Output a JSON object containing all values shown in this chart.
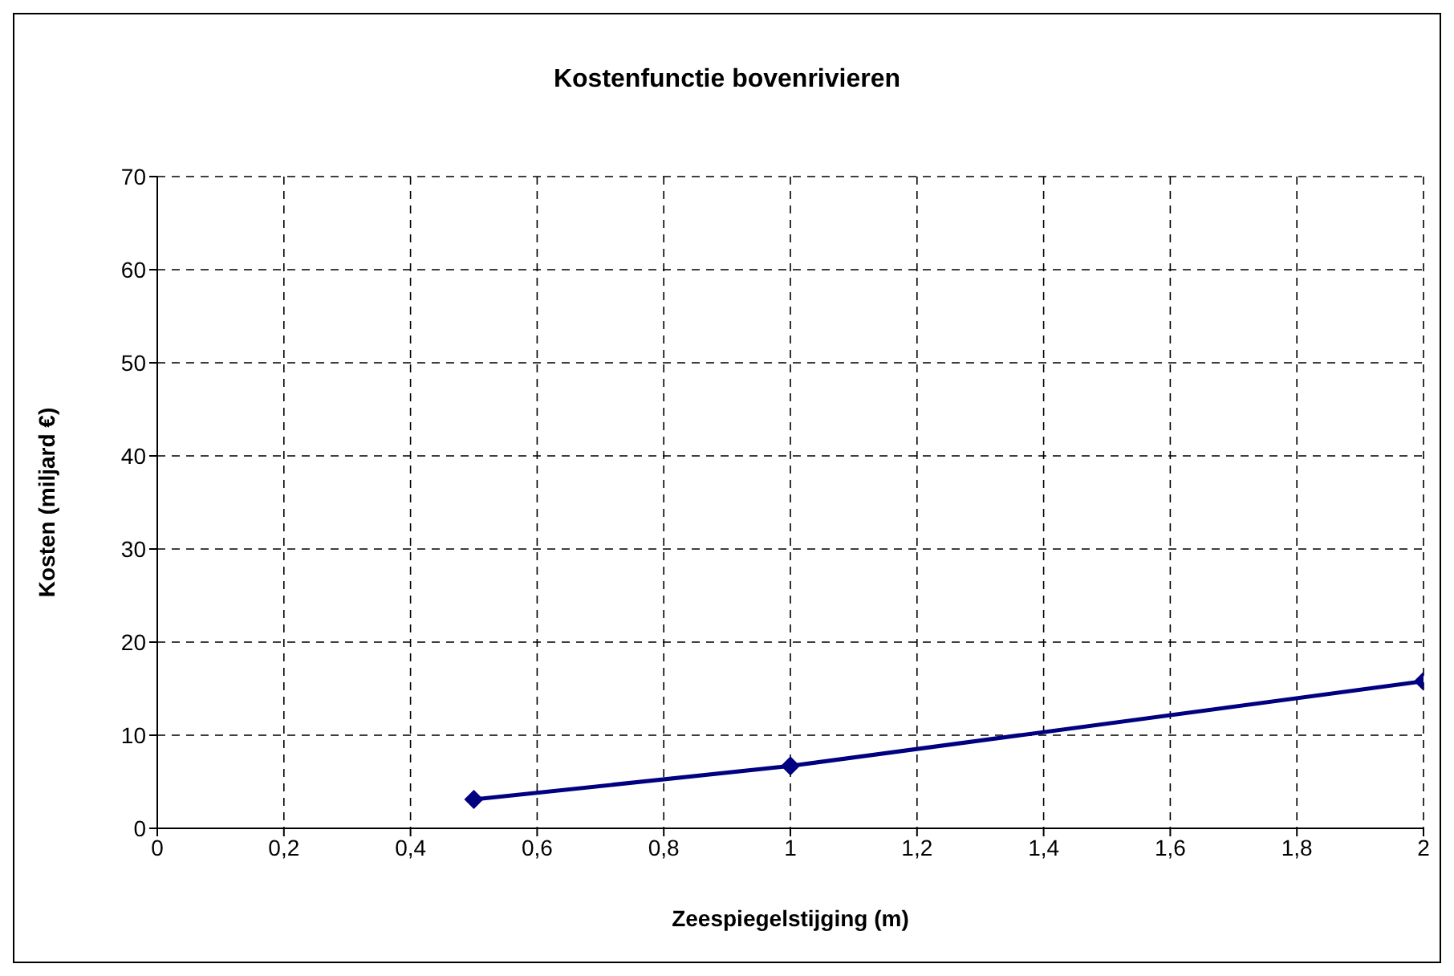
{
  "chart_data": {
    "type": "line",
    "title": "Kostenfunctie bovenrivieren",
    "xlabel": "Zeespiegelstijging (m)",
    "ylabel": "Kosten (miljard €)",
    "x": [
      0.5,
      1,
      2
    ],
    "series": [
      {
        "color": "#000080",
        "values": [
          3.1,
          6.7,
          15.8
        ]
      }
    ],
    "xlim": [
      0,
      2
    ],
    "xticks": [
      0,
      {
        "value": 0.2,
        "label": "0,2"
      },
      {
        "value": 0.4,
        "label": "0,4"
      },
      {
        "value": 0.6,
        "label": "0,6"
      },
      {
        "value": 0.8,
        "label": "0,8"
      },
      1,
      {
        "value": 1.2,
        "label": "1,2"
      },
      {
        "value": 1.4,
        "label": "1,4"
      },
      {
        "value": 1.6,
        "label": "1,6"
      },
      {
        "value": 1.8,
        "label": "1,8"
      },
      2
    ],
    "ylim": [
      0,
      70
    ],
    "yticks": [
      0,
      10,
      20,
      30,
      40,
      50,
      60,
      70
    ],
    "grid": true,
    "marker": "diamond",
    "line_style": "solid"
  }
}
